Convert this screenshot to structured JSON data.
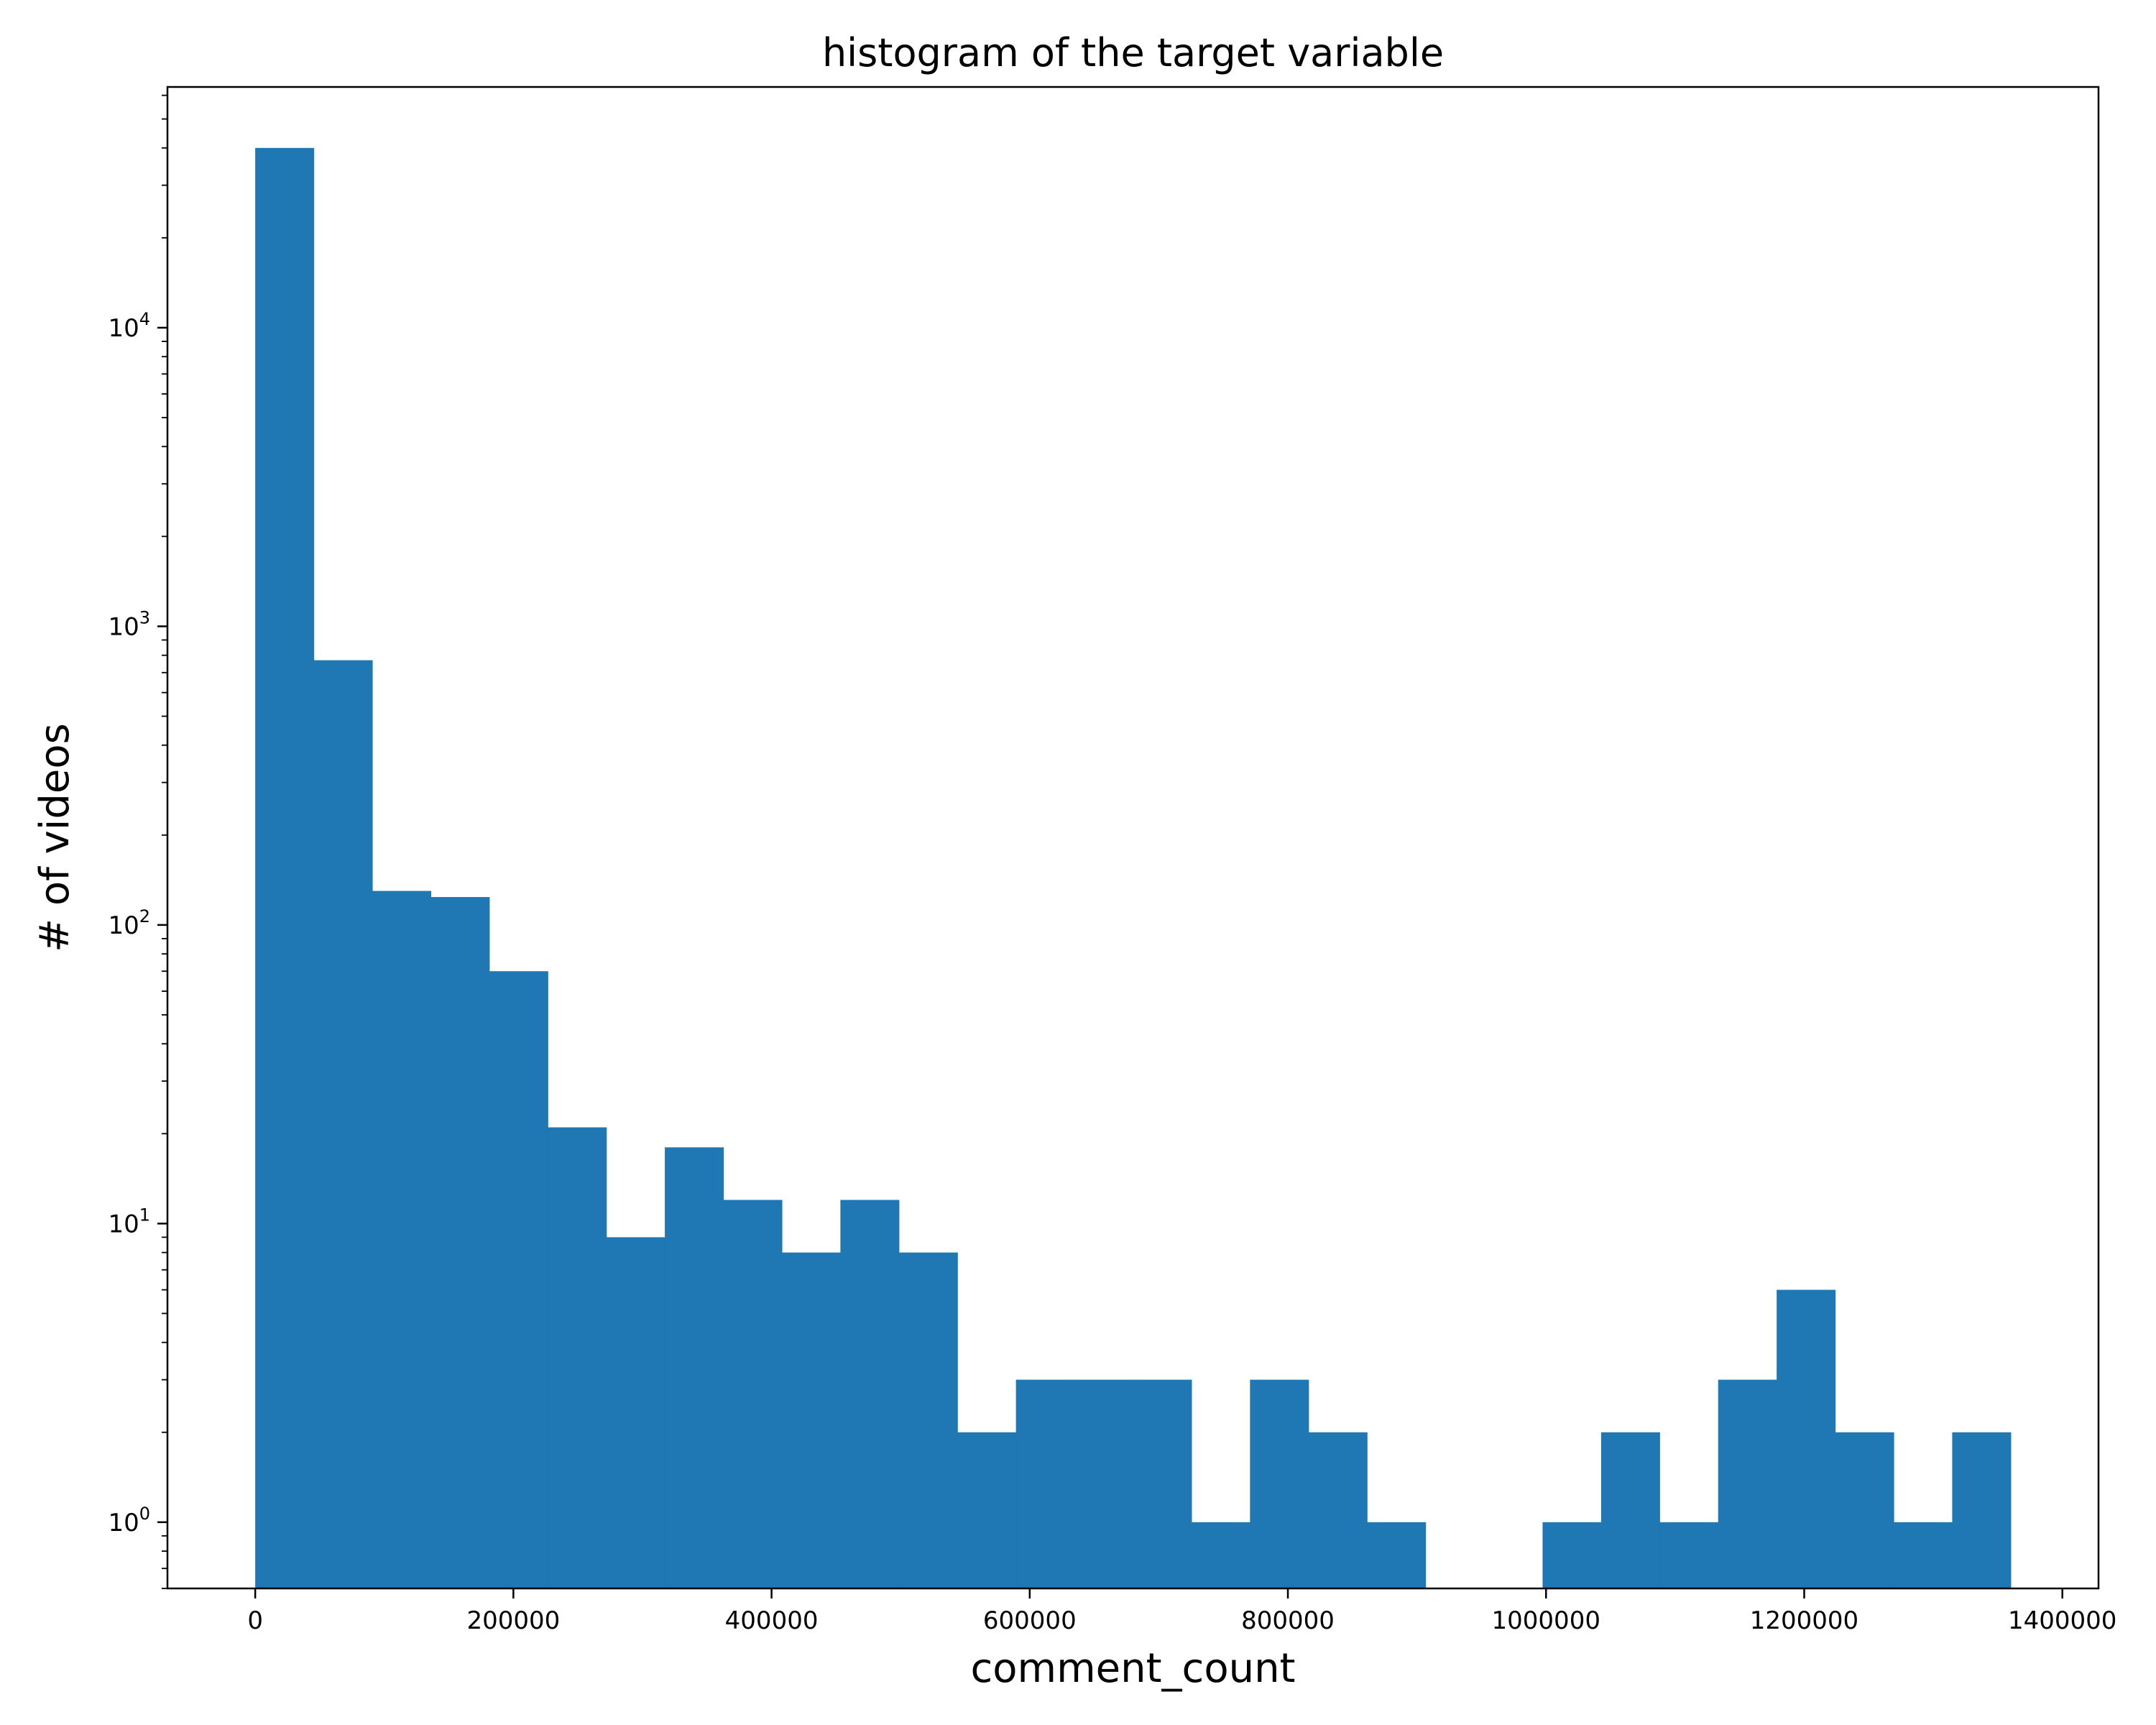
{
  "chart_data": {
    "type": "bar",
    "title": "histogram of the target variable",
    "xlabel": "comment_count",
    "ylabel": "# of videos",
    "yscale": "log",
    "xlim": [
      -68000,
      1428000
    ],
    "ylim": [
      0.6,
      64000
    ],
    "grid": false,
    "legend": "none",
    "color": "#1f77b4",
    "bin_width": 45333,
    "bin_start": 0,
    "values": [
      40000,
      770,
      130,
      124,
      70,
      21,
      9,
      18,
      12,
      8,
      12,
      8,
      2,
      3,
      3,
      3,
      1,
      3,
      2,
      1,
      0,
      0,
      1,
      2,
      1,
      3,
      6,
      2,
      1,
      2
    ],
    "xticks": [
      {
        "value": 0,
        "label": "0"
      },
      {
        "value": 200000,
        "label": "200000"
      },
      {
        "value": 400000,
        "label": "400000"
      },
      {
        "value": 600000,
        "label": "600000"
      },
      {
        "value": 800000,
        "label": "800000"
      },
      {
        "value": 1000000,
        "label": "1000000"
      },
      {
        "value": 1200000,
        "label": "1200000"
      },
      {
        "value": 1400000,
        "label": "1400000"
      }
    ],
    "yticks": [
      {
        "value": 1,
        "base": "10",
        "exp": "0"
      },
      {
        "value": 10,
        "base": "10",
        "exp": "1"
      },
      {
        "value": 100,
        "base": "10",
        "exp": "2"
      },
      {
        "value": 1000,
        "base": "10",
        "exp": "3"
      },
      {
        "value": 10000,
        "base": "10",
        "exp": "4"
      }
    ]
  }
}
